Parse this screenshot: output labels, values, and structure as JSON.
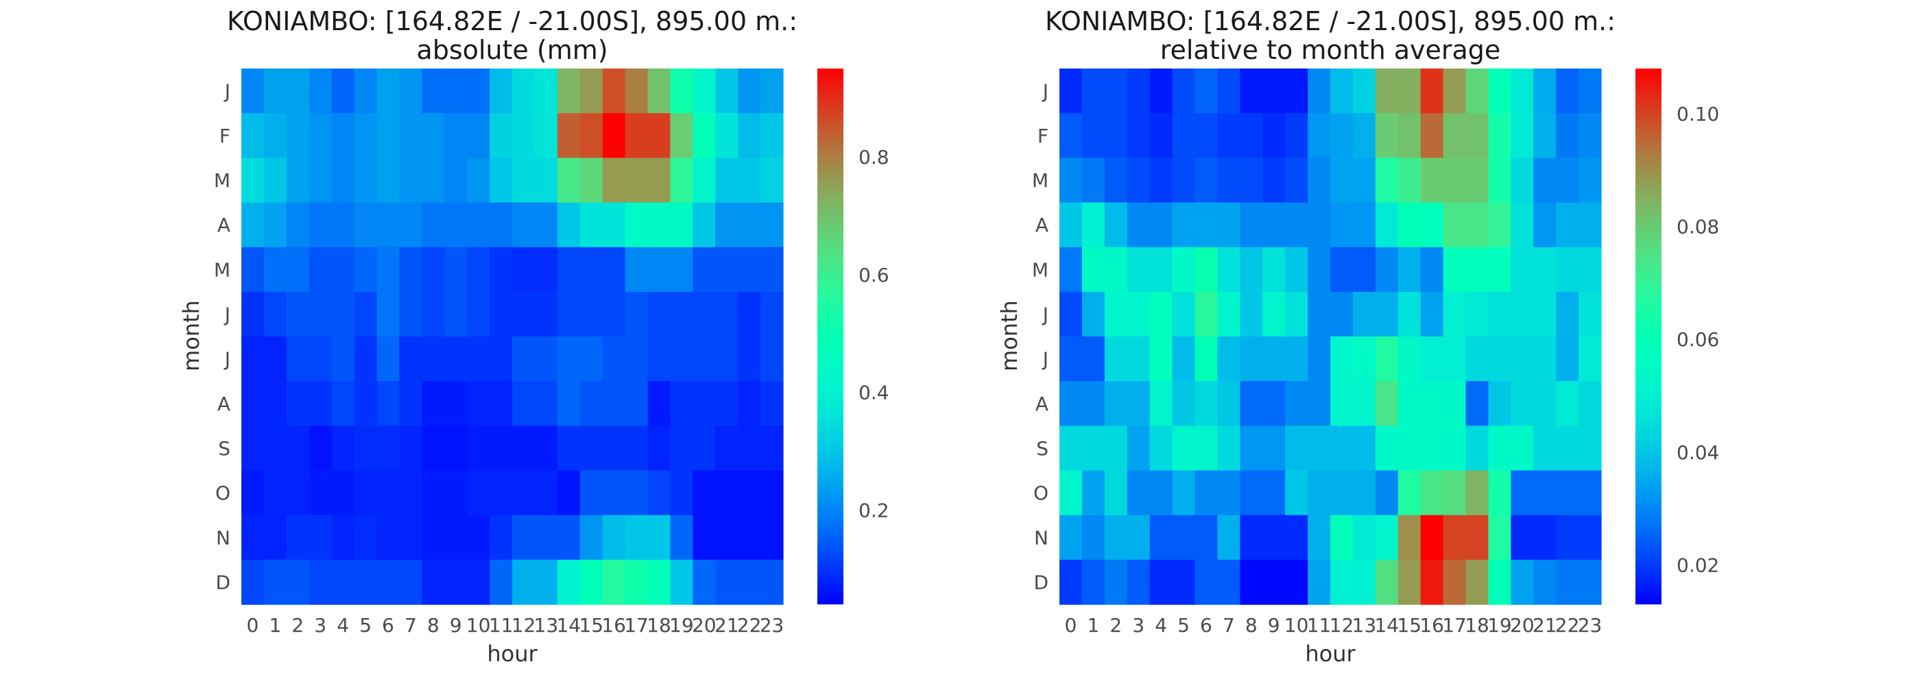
{
  "chart_data": [
    {
      "type": "heatmap",
      "title": "KONIAMBO: [164.82E / -21.00S], 895.00 m.:",
      "subtitle": "absolute (mm)",
      "xlabel": "hour",
      "ylabel": "month",
      "x": [
        "0",
        "1",
        "2",
        "3",
        "4",
        "5",
        "6",
        "7",
        "8",
        "9",
        "10",
        "11",
        "12",
        "13",
        "14",
        "15",
        "16",
        "17",
        "18",
        "19",
        "20",
        "21",
        "22",
        "23"
      ],
      "y": [
        "J",
        "F",
        "M",
        "A",
        "M",
        "J",
        "J",
        "A",
        "S",
        "O",
        "N",
        "D"
      ],
      "colormap": "rainbow",
      "vmin": 0.04,
      "vmax": 0.95,
      "colorbar_ticks": [
        0.2,
        0.4,
        0.6,
        0.8
      ],
      "colorbar_ticklabels": [
        "0.2",
        "0.4",
        "0.6",
        "0.8"
      ],
      "values": [
        [
          0.2,
          0.24,
          0.24,
          0.2,
          0.16,
          0.2,
          0.24,
          0.22,
          0.17,
          0.17,
          0.17,
          0.28,
          0.34,
          0.36,
          0.72,
          0.76,
          0.86,
          0.8,
          0.7,
          0.52,
          0.42,
          0.3,
          0.22,
          0.24
        ],
        [
          0.28,
          0.26,
          0.24,
          0.22,
          0.2,
          0.22,
          0.24,
          0.22,
          0.22,
          0.2,
          0.2,
          0.32,
          0.34,
          0.36,
          0.84,
          0.86,
          0.95,
          0.88,
          0.88,
          0.68,
          0.48,
          0.36,
          0.28,
          0.3
        ],
        [
          0.34,
          0.3,
          0.24,
          0.22,
          0.2,
          0.22,
          0.24,
          0.22,
          0.22,
          0.2,
          0.22,
          0.3,
          0.34,
          0.34,
          0.62,
          0.66,
          0.76,
          0.76,
          0.76,
          0.58,
          0.42,
          0.3,
          0.3,
          0.32
        ],
        [
          0.26,
          0.24,
          0.2,
          0.18,
          0.18,
          0.2,
          0.2,
          0.2,
          0.18,
          0.18,
          0.18,
          0.18,
          0.2,
          0.2,
          0.3,
          0.36,
          0.36,
          0.44,
          0.44,
          0.44,
          0.3,
          0.22,
          0.22,
          0.22
        ],
        [
          0.14,
          0.17,
          0.17,
          0.14,
          0.14,
          0.16,
          0.18,
          0.14,
          0.12,
          0.14,
          0.12,
          0.1,
          0.09,
          0.09,
          0.12,
          0.12,
          0.12,
          0.2,
          0.2,
          0.2,
          0.14,
          0.14,
          0.14,
          0.14
        ],
        [
          0.1,
          0.12,
          0.14,
          0.14,
          0.14,
          0.12,
          0.18,
          0.14,
          0.12,
          0.14,
          0.12,
          0.1,
          0.1,
          0.1,
          0.12,
          0.12,
          0.12,
          0.14,
          0.12,
          0.12,
          0.12,
          0.12,
          0.1,
          0.12
        ],
        [
          0.08,
          0.08,
          0.12,
          0.12,
          0.14,
          0.1,
          0.16,
          0.1,
          0.1,
          0.1,
          0.1,
          0.1,
          0.14,
          0.14,
          0.16,
          0.16,
          0.14,
          0.14,
          0.12,
          0.12,
          0.12,
          0.12,
          0.1,
          0.12
        ],
        [
          0.08,
          0.08,
          0.1,
          0.1,
          0.12,
          0.1,
          0.12,
          0.1,
          0.07,
          0.07,
          0.08,
          0.08,
          0.12,
          0.12,
          0.16,
          0.14,
          0.14,
          0.14,
          0.07,
          0.1,
          0.1,
          0.1,
          0.08,
          0.1
        ],
        [
          0.08,
          0.08,
          0.08,
          0.06,
          0.08,
          0.09,
          0.09,
          0.08,
          0.06,
          0.06,
          0.07,
          0.07,
          0.07,
          0.07,
          0.1,
          0.1,
          0.1,
          0.1,
          0.08,
          0.1,
          0.1,
          0.08,
          0.08,
          0.08
        ],
        [
          0.07,
          0.08,
          0.08,
          0.07,
          0.07,
          0.08,
          0.08,
          0.08,
          0.07,
          0.07,
          0.08,
          0.08,
          0.08,
          0.08,
          0.06,
          0.14,
          0.14,
          0.14,
          0.12,
          0.1,
          0.06,
          0.06,
          0.06,
          0.06
        ],
        [
          0.08,
          0.08,
          0.1,
          0.1,
          0.08,
          0.09,
          0.08,
          0.08,
          0.07,
          0.07,
          0.07,
          0.1,
          0.14,
          0.14,
          0.14,
          0.22,
          0.28,
          0.3,
          0.3,
          0.16,
          0.06,
          0.06,
          0.06,
          0.06
        ],
        [
          0.12,
          0.14,
          0.14,
          0.12,
          0.12,
          0.12,
          0.12,
          0.12,
          0.08,
          0.08,
          0.08,
          0.16,
          0.26,
          0.26,
          0.4,
          0.48,
          0.56,
          0.52,
          0.48,
          0.3,
          0.16,
          0.14,
          0.14,
          0.14
        ]
      ]
    },
    {
      "type": "heatmap",
      "title": "KONIAMBO: [164.82E / -21.00S], 895.00 m.:",
      "subtitle": "relative to month average",
      "xlabel": "hour",
      "ylabel": "month",
      "x": [
        "0",
        "1",
        "2",
        "3",
        "4",
        "5",
        "6",
        "7",
        "8",
        "9",
        "10",
        "11",
        "12",
        "13",
        "14",
        "15",
        "16",
        "17",
        "18",
        "19",
        "20",
        "21",
        "22",
        "23"
      ],
      "y": [
        "J",
        "F",
        "M",
        "A",
        "M",
        "J",
        "J",
        "A",
        "S",
        "O",
        "N",
        "D"
      ],
      "colormap": "rainbow",
      "vmin": 0.013,
      "vmax": 0.108,
      "colorbar_ticks": [
        0.02,
        0.04,
        0.06,
        0.08,
        0.1
      ],
      "colorbar_ticklabels": [
        "0.02",
        "0.04",
        "0.06",
        "0.08",
        "0.10"
      ],
      "values": [
        [
          0.018,
          0.022,
          0.022,
          0.02,
          0.016,
          0.022,
          0.025,
          0.022,
          0.016,
          0.016,
          0.016,
          0.03,
          0.038,
          0.042,
          0.085,
          0.085,
          0.102,
          0.088,
          0.078,
          0.06,
          0.048,
          0.035,
          0.025,
          0.028
        ],
        [
          0.024,
          0.022,
          0.022,
          0.02,
          0.018,
          0.022,
          0.022,
          0.02,
          0.02,
          0.018,
          0.02,
          0.032,
          0.034,
          0.036,
          0.08,
          0.082,
          0.095,
          0.082,
          0.082,
          0.064,
          0.048,
          0.036,
          0.028,
          0.03
        ],
        [
          0.03,
          0.028,
          0.024,
          0.022,
          0.02,
          0.022,
          0.024,
          0.022,
          0.022,
          0.02,
          0.022,
          0.03,
          0.034,
          0.034,
          0.066,
          0.072,
          0.08,
          0.08,
          0.08,
          0.064,
          0.044,
          0.03,
          0.03,
          0.032
        ],
        [
          0.04,
          0.05,
          0.038,
          0.03,
          0.03,
          0.034,
          0.034,
          0.034,
          0.03,
          0.03,
          0.03,
          0.03,
          0.032,
          0.032,
          0.048,
          0.06,
          0.058,
          0.074,
          0.074,
          0.07,
          0.046,
          0.032,
          0.036,
          0.036
        ],
        [
          0.028,
          0.054,
          0.054,
          0.046,
          0.046,
          0.054,
          0.062,
          0.046,
          0.04,
          0.046,
          0.04,
          0.03,
          0.024,
          0.024,
          0.03,
          0.036,
          0.03,
          0.058,
          0.058,
          0.058,
          0.046,
          0.046,
          0.044,
          0.044
        ],
        [
          0.022,
          0.036,
          0.052,
          0.052,
          0.058,
          0.046,
          0.068,
          0.052,
          0.04,
          0.052,
          0.046,
          0.03,
          0.03,
          0.036,
          0.036,
          0.046,
          0.034,
          0.05,
          0.048,
          0.046,
          0.046,
          0.046,
          0.036,
          0.046
        ],
        [
          0.024,
          0.024,
          0.044,
          0.044,
          0.058,
          0.038,
          0.06,
          0.038,
          0.036,
          0.036,
          0.036,
          0.03,
          0.052,
          0.054,
          0.066,
          0.054,
          0.05,
          0.05,
          0.044,
          0.044,
          0.044,
          0.044,
          0.036,
          0.048
        ],
        [
          0.03,
          0.03,
          0.036,
          0.036,
          0.052,
          0.04,
          0.044,
          0.04,
          0.026,
          0.026,
          0.03,
          0.03,
          0.052,
          0.052,
          0.074,
          0.054,
          0.054,
          0.054,
          0.026,
          0.04,
          0.044,
          0.044,
          0.048,
          0.044
        ],
        [
          0.044,
          0.044,
          0.044,
          0.034,
          0.044,
          0.052,
          0.052,
          0.044,
          0.032,
          0.032,
          0.038,
          0.038,
          0.038,
          0.038,
          0.054,
          0.054,
          0.054,
          0.054,
          0.044,
          0.054,
          0.054,
          0.044,
          0.044,
          0.044
        ],
        [
          0.052,
          0.034,
          0.044,
          0.03,
          0.03,
          0.036,
          0.03,
          0.03,
          0.026,
          0.026,
          0.04,
          0.036,
          0.036,
          0.036,
          0.03,
          0.066,
          0.074,
          0.076,
          0.084,
          0.064,
          0.026,
          0.026,
          0.026,
          0.026
        ],
        [
          0.034,
          0.03,
          0.036,
          0.036,
          0.024,
          0.024,
          0.024,
          0.036,
          0.018,
          0.018,
          0.018,
          0.036,
          0.06,
          0.048,
          0.052,
          0.09,
          0.108,
          0.1,
          0.1,
          0.066,
          0.018,
          0.018,
          0.02,
          0.02
        ],
        [
          0.02,
          0.024,
          0.028,
          0.024,
          0.018,
          0.018,
          0.024,
          0.024,
          0.014,
          0.014,
          0.014,
          0.034,
          0.05,
          0.05,
          0.076,
          0.088,
          0.105,
          0.095,
          0.088,
          0.06,
          0.034,
          0.03,
          0.028,
          0.028
        ]
      ]
    }
  ]
}
